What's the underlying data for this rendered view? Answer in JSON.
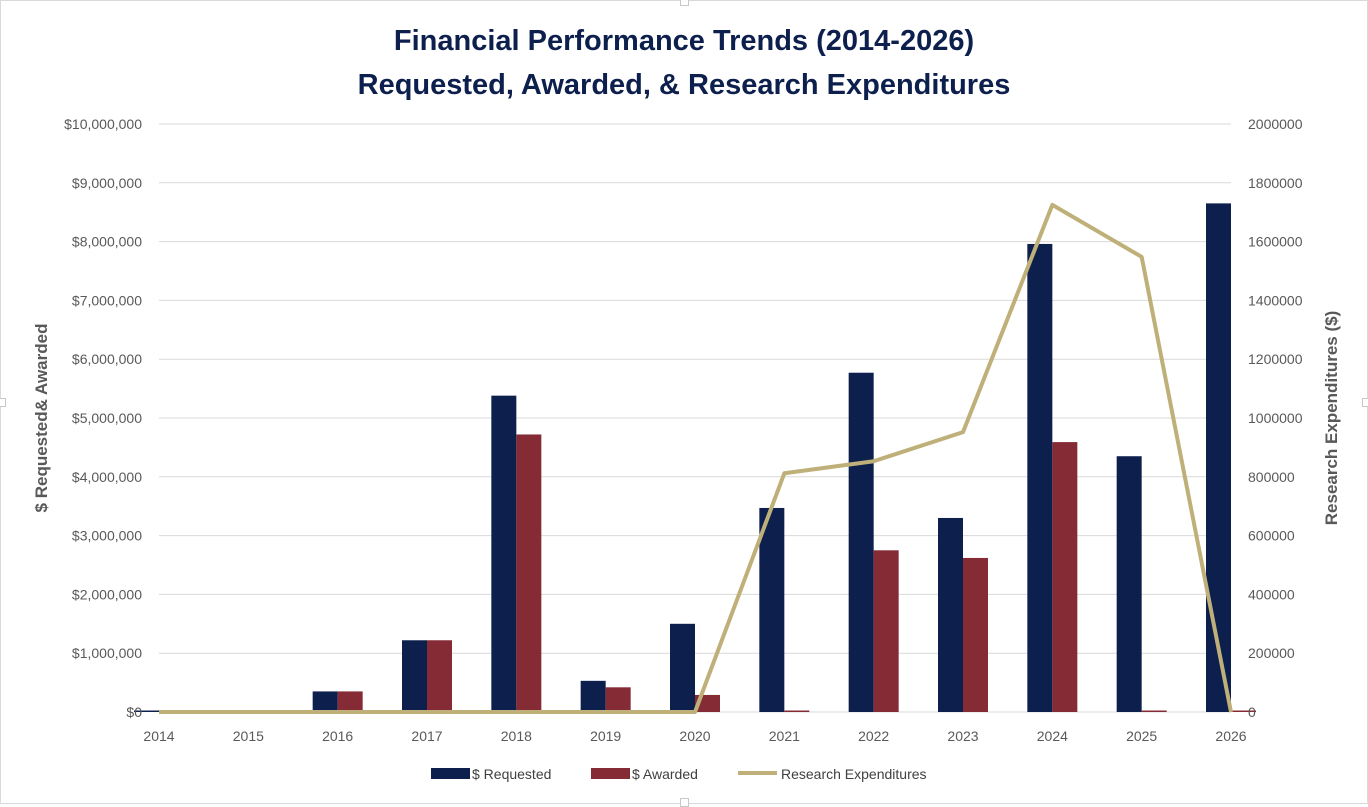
{
  "chart_data": {
    "type": "bar",
    "title": "Financial Performance Trends (2014-2026)",
    "subtitle": "Requested, Awarded, & Research Expenditures",
    "ylabel": "$ Requested& Awarded",
    "y2label": "Research Expenditures ($)",
    "xlabel": "",
    "categories": [
      "2014",
      "2015",
      "2016",
      "2017",
      "2018",
      "2019",
      "2020",
      "2021",
      "2022",
      "2023",
      "2024",
      "2025",
      "2026"
    ],
    "ylim": [
      0,
      10000000
    ],
    "y2lim": [
      0,
      2000000
    ],
    "yticks": [
      "$0",
      "$1,000,000",
      "$2,000,000",
      "$3,000,000",
      "$4,000,000",
      "$5,000,000",
      "$6,000,000",
      "$7,000,000",
      "$8,000,000",
      "$9,000,000",
      "$10,000,000"
    ],
    "y2ticks": [
      "0",
      "200000",
      "400000",
      "600000",
      "800000",
      "1000000",
      "1200000",
      "1400000",
      "1600000",
      "1800000",
      "2000000"
    ],
    "grid": true,
    "legend_position": "bottom",
    "series": [
      {
        "name": "$ Requested",
        "type": "bar",
        "axis": "left",
        "color": "#0c1f4d",
        "values": [
          0,
          0,
          350000,
          1220000,
          5380000,
          530000,
          1500000,
          3470000,
          5770000,
          3300000,
          7960000,
          4350000,
          8650000
        ]
      },
      {
        "name": "$ Awarded",
        "type": "bar",
        "axis": "left",
        "color": "#842b35",
        "values": [
          0,
          0,
          350000,
          1220000,
          4720000,
          420000,
          290000,
          0,
          2750000,
          2620000,
          4590000,
          0,
          0
        ]
      },
      {
        "name": "Research Expenditures",
        "type": "line",
        "axis": "right",
        "color": "#bfb07a",
        "values": [
          0,
          0,
          0,
          0,
          0,
          0,
          0,
          812000,
          853000,
          952000,
          1725000,
          1548000,
          0
        ]
      }
    ]
  }
}
